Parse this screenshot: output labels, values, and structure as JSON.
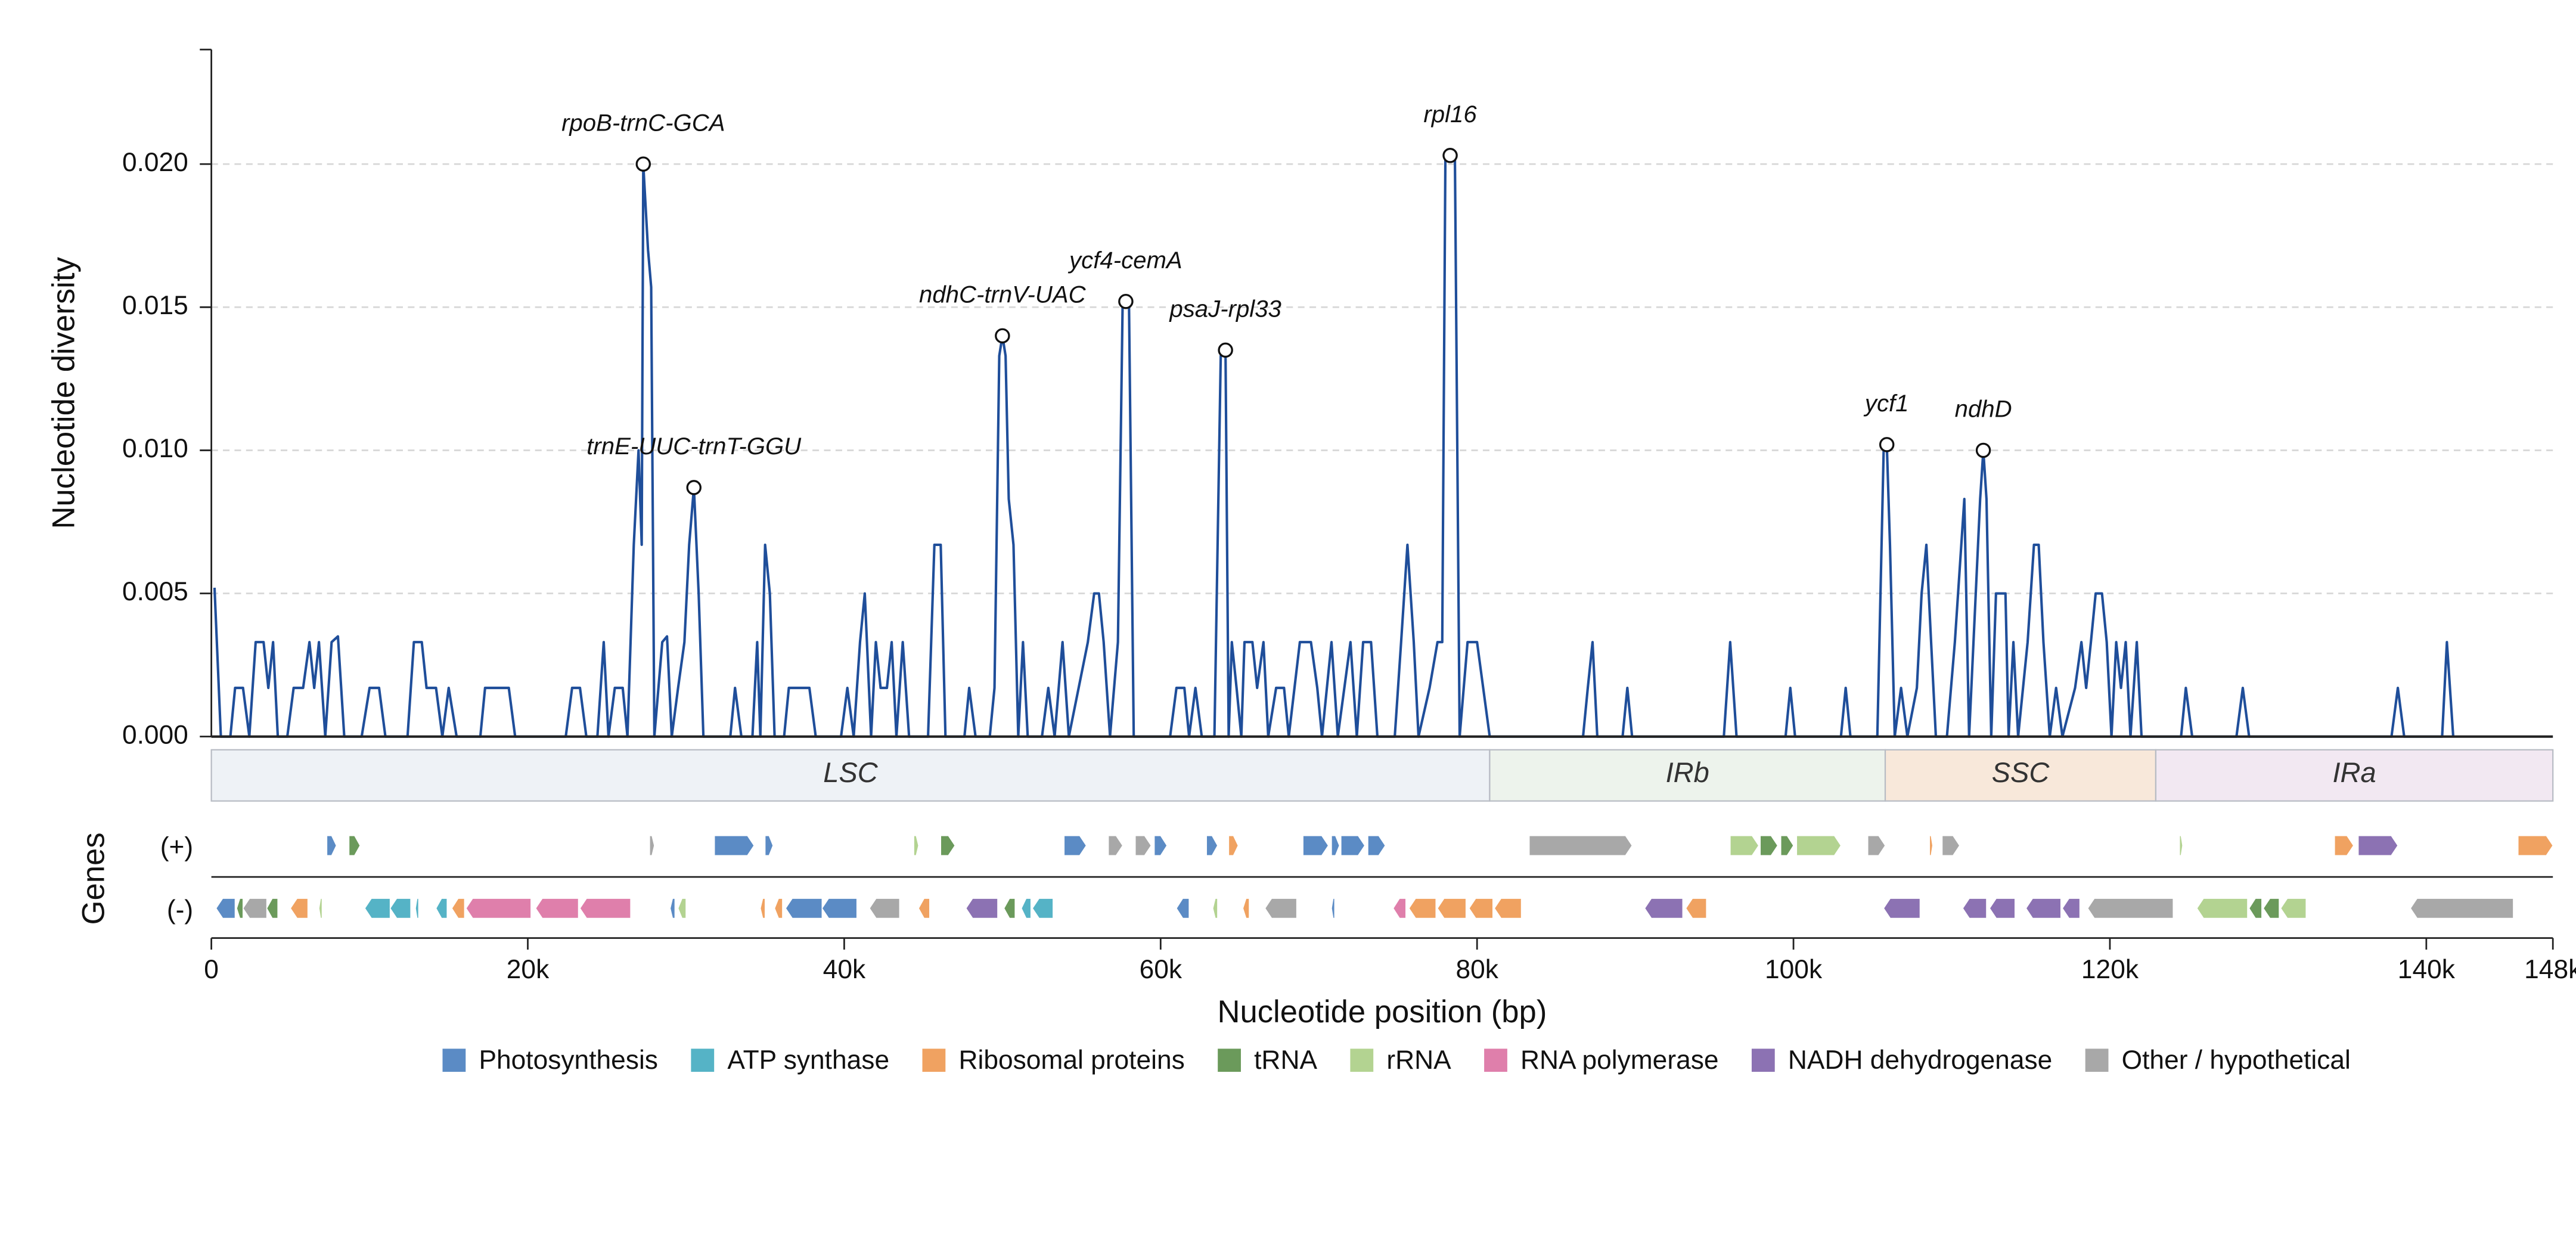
{
  "chart_data": {
    "type": "line",
    "y_label": "Nucleotide diversity",
    "x_label": "Nucleotide position (bp)",
    "color": "#1f4e9a",
    "grid": true,
    "ylim": [
      0,
      0.024
    ],
    "yticks": [
      {
        "value": 0,
        "label": "0.000"
      },
      {
        "value": 0.005,
        "label": "0.005"
      },
      {
        "value": 0.01,
        "label": "0.010"
      },
      {
        "value": 0.015,
        "label": "0.015"
      },
      {
        "value": 0.02,
        "label": "0.020"
      }
    ],
    "xlim": [
      0,
      148000
    ],
    "xticks": [
      0,
      {
        "value": 20000,
        "label": "20k"
      },
      {
        "value": 40000,
        "label": "40k"
      },
      {
        "value": 60000,
        "label": "60k"
      },
      {
        "value": 80000,
        "label": "80k"
      },
      {
        "value": 100000,
        "label": "100k"
      },
      {
        "value": 120000,
        "label": "120k"
      },
      {
        "value": 140000,
        "label": "140k"
      },
      {
        "value": 148000,
        "label": "148k"
      }
    ],
    "x": [
      200,
      600,
      1200,
      1500,
      2000,
      2400,
      2800,
      3300,
      3600,
      3900,
      4200,
      4800,
      5200,
      5800,
      6200,
      6500,
      6800,
      7200,
      7600,
      8000,
      8400,
      9500,
      10000,
      10600,
      11000,
      12400,
      12800,
      13300,
      13600,
      14200,
      14600,
      15000,
      15500,
      17000,
      17300,
      18800,
      19200,
      22400,
      22800,
      23300,
      23700,
      24400,
      24800,
      25100,
      25500,
      26000,
      26300,
      26700,
      27000,
      27200,
      27300,
      27600,
      27800,
      28000,
      28500,
      28800,
      29100,
      29500,
      29900,
      30200,
      30500,
      30800,
      31100,
      32800,
      33100,
      33500,
      34200,
      34500,
      34700,
      35000,
      35300,
      35600,
      36200,
      36500,
      37800,
      38200,
      39800,
      40200,
      40600,
      41000,
      41300,
      41700,
      42000,
      42300,
      42700,
      43000,
      43300,
      43700,
      44100,
      45300,
      45700,
      46100,
      46400,
      47600,
      47900,
      48300,
      49200,
      49500,
      49800,
      50000,
      50200,
      50400,
      50700,
      51000,
      51300,
      51600,
      52500,
      52900,
      53300,
      53800,
      54200,
      55400,
      55800,
      56100,
      56400,
      56800,
      57300,
      57600,
      58000,
      58300,
      60600,
      61000,
      61500,
      61800,
      62200,
      62600,
      63400,
      63800,
      64100,
      64300,
      64500,
      64800,
      65100,
      65300,
      65800,
      66100,
      66500,
      66800,
      67300,
      67800,
      68100,
      68800,
      69500,
      69900,
      70200,
      70800,
      71200,
      72000,
      72400,
      72800,
      73300,
      73700,
      74800,
      75200,
      75600,
      76000,
      76300,
      77000,
      77500,
      77800,
      78000,
      78600,
      78900,
      79400,
      80000,
      80800,
      86700,
      87000,
      87300,
      87600,
      89200,
      89500,
      89800,
      95600,
      96000,
      96400,
      99500,
      99800,
      100100,
      103000,
      103300,
      103600,
      105300,
      105700,
      105900,
      106100,
      106400,
      106800,
      107200,
      107800,
      108100,
      108400,
      108700,
      109000,
      109700,
      110200,
      110800,
      111100,
      111800,
      112000,
      112200,
      112500,
      112800,
      113100,
      113400,
      113600,
      113900,
      114200,
      114800,
      115200,
      115500,
      115800,
      116200,
      116600,
      117000,
      117800,
      118200,
      118500,
      118800,
      119100,
      119500,
      119800,
      120100,
      120400,
      120700,
      121000,
      121300,
      121700,
      122000,
      124500,
      124800,
      125200,
      128000,
      128400,
      128800,
      137800,
      138200,
      138600,
      141000,
      141300,
      141700
    ],
    "values": [
      0.0052,
      0,
      0,
      0.0017,
      0.0017,
      0,
      0.0033,
      0.0033,
      0.0017,
      0.0033,
      0,
      0,
      0.0017,
      0.0017,
      0.0033,
      0.0017,
      0.0033,
      0,
      0.0033,
      0.0035,
      0,
      0,
      0.0017,
      0.0017,
      0,
      0,
      0.0033,
      0.0033,
      0.0017,
      0.0017,
      0,
      0.0017,
      0,
      0,
      0.0017,
      0.0017,
      0,
      0,
      0.0017,
      0.0017,
      0,
      0,
      0.0033,
      0,
      0.0017,
      0.0017,
      0,
      0.0067,
      0.01,
      0.0067,
      0.02,
      0.017,
      0.0157,
      0,
      0.0033,
      0.0035,
      0,
      0.0017,
      0.0033,
      0.0067,
      0.0087,
      0.005,
      0,
      0,
      0.0017,
      0,
      0,
      0.0033,
      0,
      0.0067,
      0.005,
      0,
      0,
      0.0017,
      0.0017,
      0,
      0,
      0.0017,
      0,
      0.0033,
      0.005,
      0,
      0.0033,
      0.0017,
      0.0017,
      0.0033,
      0,
      0.0033,
      0,
      0,
      0.0067,
      0.0067,
      0,
      0,
      0.0017,
      0,
      0,
      0.0017,
      0.0133,
      0.014,
      0.0133,
      0.0083,
      0.0067,
      0,
      0.0033,
      0,
      0,
      0.0017,
      0,
      0.0033,
      0,
      0.0033,
      0.005,
      0.005,
      0.0033,
      0,
      0.0033,
      0.0152,
      0.0152,
      0,
      0,
      0.0017,
      0.0017,
      0,
      0.0017,
      0,
      0,
      0.0133,
      0.0135,
      0,
      0.0033,
      0.0017,
      0,
      0.0033,
      0.0033,
      0.0017,
      0.0033,
      0,
      0.0017,
      0.0017,
      0,
      0.0033,
      0.0033,
      0.0017,
      0,
      0.0033,
      0,
      0.0033,
      0,
      0.0033,
      0.0033,
      0,
      0,
      0.0033,
      0.0067,
      0.0033,
      0,
      0.0017,
      0.0033,
      0.0033,
      0.0203,
      0.0203,
      0,
      0.0033,
      0.0033,
      0,
      0,
      0.0017,
      0.0033,
      0,
      0,
      0.0017,
      0,
      0,
      0.0033,
      0,
      0,
      0.0017,
      0,
      0,
      0.0017,
      0,
      0,
      0.01,
      0.0102,
      0.0067,
      0,
      0.0017,
      0,
      0.0017,
      0.005,
      0.0067,
      0.0033,
      0,
      0,
      0.0033,
      0.0083,
      0,
      0.0083,
      0.01,
      0.0083,
      0,
      0.005,
      0.005,
      0.005,
      0,
      0.0033,
      0,
      0.0033,
      0.0067,
      0.0067,
      0.0033,
      0,
      0.0017,
      0,
      0.0017,
      0.0033,
      0.0017,
      0.0033,
      0.005,
      0.005,
      0.0033,
      0,
      0.0033,
      0.0017,
      0.0033,
      0,
      0.0033,
      0,
      0,
      0.0017,
      0,
      0,
      0.0017,
      0,
      0,
      0.0017,
      0,
      0,
      0.0033,
      0
    ],
    "annotations": [
      {
        "label": "rpoB-trnC-GCA",
        "x": 27300,
        "y": 0.02
      },
      {
        "label": "trnE-UUC-trnT-GGU",
        "x": 30500,
        "y": 0.0087
      },
      {
        "label": "ndhC-trnV-UAC",
        "x": 50000,
        "y": 0.014
      },
      {
        "label": "ycf4-cemA",
        "x": 57800,
        "y": 0.0152
      },
      {
        "label": "psaJ-rpl33",
        "x": 64100,
        "y": 0.0135
      },
      {
        "label": "rpl16",
        "x": 78300,
        "y": 0.0203
      },
      {
        "label": "ycf1",
        "x": 105900,
        "y": 0.0102
      },
      {
        "label": "ndhD",
        "x": 112000,
        "y": 0.01
      }
    ],
    "regions": [
      {
        "name": "LSC",
        "start": 0,
        "end": 80800,
        "color": "#eef2f6"
      },
      {
        "name": "IRb",
        "start": 80800,
        "end": 105800,
        "color": "#edf3ec"
      },
      {
        "name": "SSC",
        "start": 105800,
        "end": 122900,
        "color": "#f8e8da"
      },
      {
        "name": "IRa",
        "start": 122900,
        "end": 148000,
        "color": "#f2e8f2"
      }
    ],
    "genes": {
      "label": "Genes",
      "plus_label": "(+)",
      "minus_label": "(-)",
      "plus": [
        [
          7300,
          7900,
          0
        ],
        [
          8700,
          9400,
          3
        ],
        [
          27700,
          28000,
          7
        ],
        [
          31800,
          34300,
          0
        ],
        [
          35000,
          35500,
          0
        ],
        [
          44400,
          44700,
          4
        ],
        [
          46100,
          47000,
          3
        ],
        [
          53900,
          55300,
          0
        ],
        [
          56700,
          57600,
          7
        ],
        [
          58400,
          59400,
          7
        ],
        [
          59600,
          60400,
          0
        ],
        [
          62900,
          63600,
          0
        ],
        [
          64300,
          64900,
          2
        ],
        [
          69000,
          70600,
          0
        ],
        [
          70800,
          71300,
          0
        ],
        [
          71400,
          72900,
          0
        ],
        [
          73100,
          74200,
          0
        ],
        [
          83300,
          89800,
          7
        ],
        [
          96000,
          97800,
          4
        ],
        [
          97900,
          99000,
          3
        ],
        [
          99200,
          100000,
          3
        ],
        [
          100200,
          103000,
          4
        ],
        [
          104700,
          105800,
          7
        ],
        [
          108600,
          108800,
          2
        ],
        [
          109400,
          110500,
          7
        ],
        [
          124400,
          124600,
          4
        ],
        [
          134200,
          135400,
          2
        ],
        [
          135700,
          138200,
          6
        ],
        [
          145800,
          148000,
          2
        ]
      ],
      "minus": [
        [
          300,
          1500,
          0
        ],
        [
          1600,
          2000,
          3
        ],
        [
          2000,
          3500,
          7
        ],
        [
          3500,
          4200,
          3
        ],
        [
          5000,
          6100,
          2
        ],
        [
          6800,
          7000,
          4
        ],
        [
          9700,
          11300,
          1
        ],
        [
          11300,
          12600,
          1
        ],
        [
          12900,
          13100,
          1
        ],
        [
          14200,
          14900,
          1
        ],
        [
          15200,
          16000,
          2
        ],
        [
          16100,
          20200,
          5
        ],
        [
          20500,
          23200,
          5
        ],
        [
          23300,
          26500,
          5
        ],
        [
          29000,
          29300,
          0
        ],
        [
          29500,
          30000,
          4
        ],
        [
          34700,
          35000,
          2
        ],
        [
          35600,
          36100,
          2
        ],
        [
          36300,
          38600,
          0
        ],
        [
          38600,
          40800,
          0
        ],
        [
          41600,
          43500,
          7
        ],
        [
          44700,
          45400,
          2
        ],
        [
          47700,
          49700,
          6
        ],
        [
          50100,
          50800,
          3
        ],
        [
          51200,
          51800,
          1
        ],
        [
          51900,
          53200,
          1
        ],
        [
          61000,
          61800,
          0
        ],
        [
          63300,
          63600,
          4
        ],
        [
          65200,
          65600,
          2
        ],
        [
          66600,
          68600,
          7
        ],
        [
          70800,
          71000,
          0
        ],
        [
          74700,
          75500,
          5
        ],
        [
          75700,
          77400,
          2
        ],
        [
          77500,
          79300,
          2
        ],
        [
          79500,
          81000,
          2
        ],
        [
          81100,
          82800,
          2
        ],
        [
          90600,
          93000,
          6
        ],
        [
          93200,
          94500,
          2
        ],
        [
          105700,
          108000,
          6
        ],
        [
          110700,
          112200,
          6
        ],
        [
          112400,
          114000,
          6
        ],
        [
          114700,
          116900,
          6
        ],
        [
          117000,
          118100,
          6
        ],
        [
          118600,
          124000,
          7
        ],
        [
          125500,
          128700,
          4
        ],
        [
          128800,
          129600,
          3
        ],
        [
          129700,
          130700,
          3
        ],
        [
          130800,
          132400,
          4
        ],
        [
          139000,
          145500,
          7
        ]
      ]
    },
    "legend": [
      {
        "name": "Photosynthesis",
        "color": "#5b8bc5"
      },
      {
        "name": "ATP synthase",
        "color": "#55b3c6"
      },
      {
        "name": "Ribosomal proteins",
        "color": "#f0a261"
      },
      {
        "name": "tRNA",
        "color": "#6b9a5b"
      },
      {
        "name": "rRNA",
        "color": "#b3d391"
      },
      {
        "name": "RNA polymerase",
        "color": "#df7fab"
      },
      {
        "name": "NADH dehydrogenase",
        "color": "#8c72b3"
      },
      {
        "name": "Other / hypothetical",
        "color": "#a8a8a8"
      }
    ]
  }
}
